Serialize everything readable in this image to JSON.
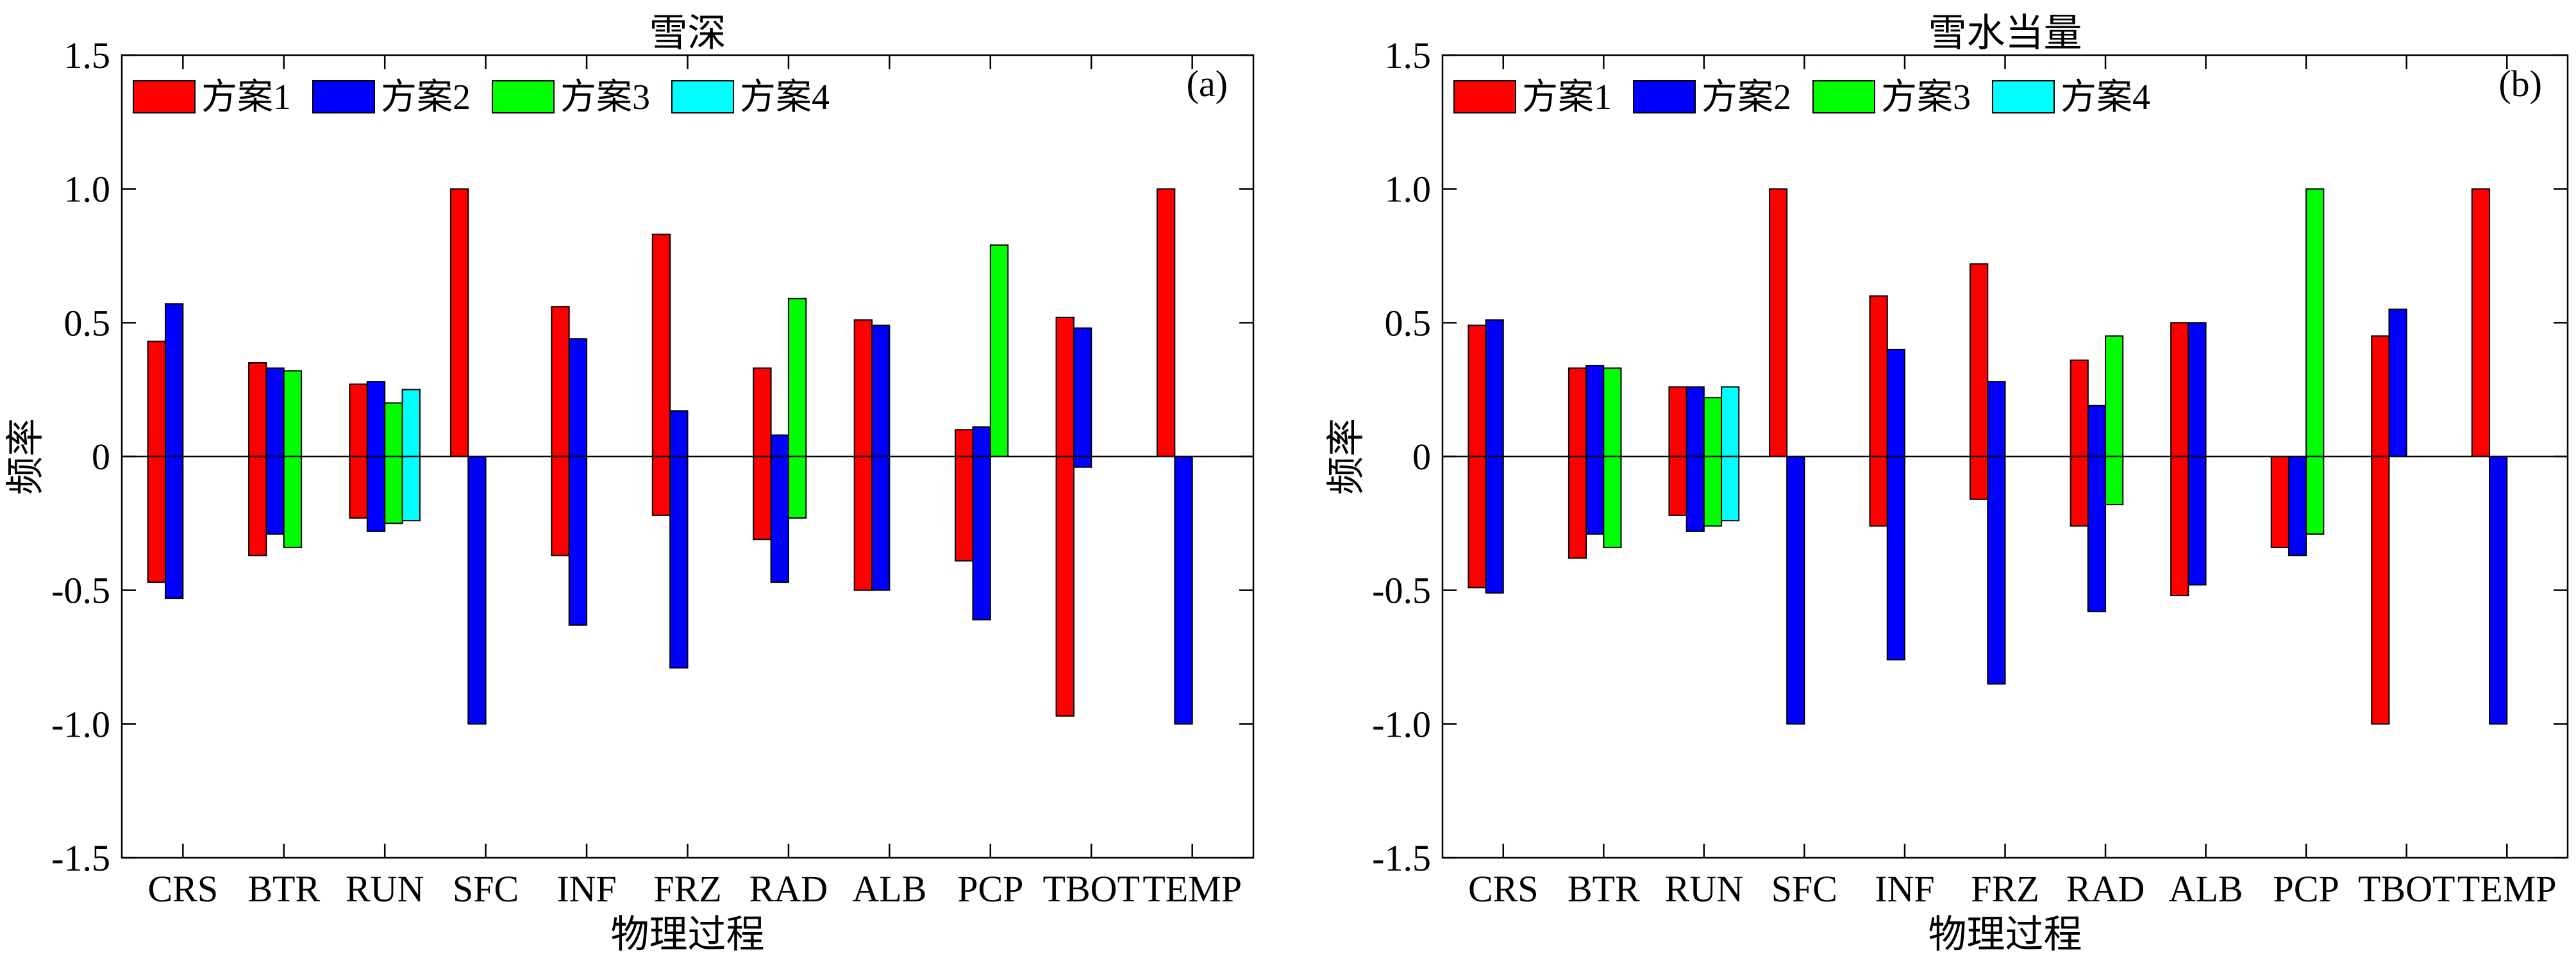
{
  "chart_data": [
    {
      "type": "bar",
      "panel_label": "(a)",
      "title": "雪深",
      "xlabel": "物理过程",
      "ylabel": "频率",
      "ylim": [
        -1.5,
        1.5
      ],
      "yticks": [
        -1.5,
        -1.0,
        -0.5,
        0,
        0.5,
        1.0,
        1.5
      ],
      "ytick_labels": [
        "-1.5",
        "-1.0",
        "-0.5",
        "0",
        "0.5",
        "1.0",
        "1.5"
      ],
      "grid": false,
      "legend_position": "top-left",
      "categories": [
        "CRS",
        "BTR",
        "RUN",
        "SFC",
        "INF",
        "FRZ",
        "RAD",
        "ALB",
        "PCP",
        "TBOT",
        "TEMP"
      ],
      "series": [
        {
          "name": "方案1",
          "pos": [
            0.43,
            0.35,
            0.27,
            1.0,
            0.56,
            0.83,
            0.33,
            0.51,
            0.1,
            0.52,
            1.0
          ],
          "neg": [
            -0.47,
            -0.37,
            -0.23,
            0,
            -0.37,
            -0.22,
            -0.31,
            -0.5,
            -0.39,
            -0.97,
            0
          ]
        },
        {
          "name": "方案2",
          "pos": [
            0.57,
            0.33,
            0.28,
            0,
            0.44,
            0.17,
            0.08,
            0.49,
            0.11,
            0.48,
            0
          ],
          "neg": [
            -0.53,
            -0.29,
            -0.28,
            -1.0,
            -0.63,
            -0.79,
            -0.47,
            -0.5,
            -0.61,
            -0.04,
            -1.0
          ]
        },
        {
          "name": "方案3",
          "pos": [
            null,
            0.32,
            0.2,
            null,
            null,
            null,
            0.59,
            null,
            0.79,
            null,
            null
          ],
          "neg": [
            null,
            -0.34,
            -0.25,
            null,
            null,
            null,
            -0.23,
            null,
            0,
            null,
            null
          ]
        },
        {
          "name": "方案4",
          "pos": [
            null,
            null,
            0.25,
            null,
            null,
            null,
            null,
            null,
            null,
            null,
            null
          ],
          "neg": [
            null,
            null,
            -0.24,
            null,
            null,
            null,
            null,
            null,
            null,
            null,
            null
          ]
        }
      ]
    },
    {
      "type": "bar",
      "panel_label": "(b)",
      "title": "雪水当量",
      "xlabel": "物理过程",
      "ylabel": "频率",
      "ylim": [
        -1.5,
        1.5
      ],
      "yticks": [
        -1.5,
        -1.0,
        -0.5,
        0,
        0.5,
        1.0,
        1.5
      ],
      "ytick_labels": [
        "-1.5",
        "-1.0",
        "-0.5",
        "0",
        "0.5",
        "1.0",
        "1.5"
      ],
      "grid": false,
      "legend_position": "top-left",
      "categories": [
        "CRS",
        "BTR",
        "RUN",
        "SFC",
        "INF",
        "FRZ",
        "RAD",
        "ALB",
        "PCP",
        "TBOT",
        "TEMP"
      ],
      "series": [
        {
          "name": "方案1",
          "pos": [
            0.49,
            0.33,
            0.26,
            1.0,
            0.6,
            0.72,
            0.36,
            0.5,
            0,
            0.45,
            1.0
          ],
          "neg": [
            -0.49,
            -0.38,
            -0.22,
            0,
            -0.26,
            -0.16,
            -0.26,
            -0.52,
            -0.34,
            -1.0,
            0
          ]
        },
        {
          "name": "方案2",
          "pos": [
            0.51,
            0.34,
            0.26,
            0,
            0.4,
            0.28,
            0.19,
            0.5,
            0,
            0.55,
            0
          ],
          "neg": [
            -0.51,
            -0.29,
            -0.28,
            -1.0,
            -0.76,
            -0.85,
            -0.58,
            -0.48,
            -0.37,
            0,
            -1.0
          ]
        },
        {
          "name": "方案3",
          "pos": [
            null,
            0.33,
            0.22,
            null,
            null,
            null,
            0.45,
            null,
            1.0,
            null,
            null
          ],
          "neg": [
            null,
            -0.34,
            -0.26,
            null,
            null,
            null,
            -0.18,
            null,
            -0.29,
            null,
            null
          ]
        },
        {
          "name": "方案4",
          "pos": [
            null,
            null,
            0.26,
            null,
            null,
            null,
            null,
            null,
            null,
            null,
            null
          ],
          "neg": [
            null,
            null,
            -0.24,
            null,
            null,
            null,
            null,
            null,
            null,
            null,
            null
          ]
        }
      ]
    }
  ],
  "colors": {
    "series": [
      "#ff0000",
      "#0000ff",
      "#00ff00",
      "#00ffff"
    ],
    "axis": "#000000",
    "background": "#ffffff"
  }
}
